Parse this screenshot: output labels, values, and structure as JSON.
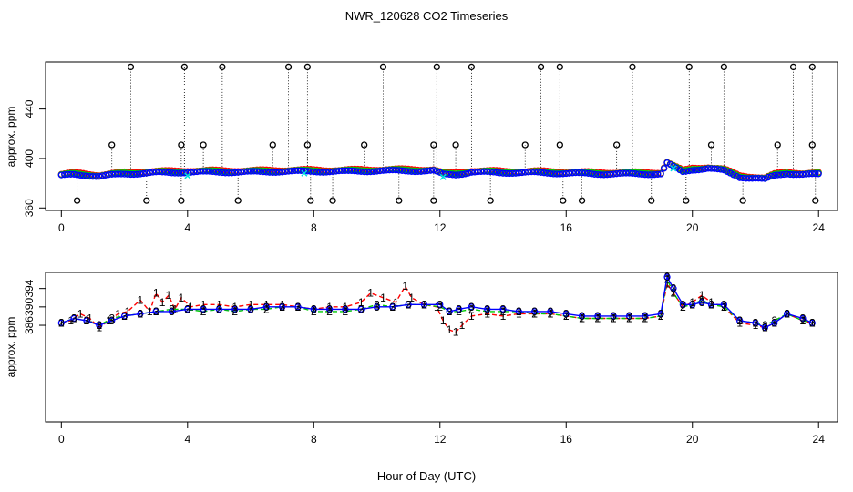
{
  "title": "NWR_120628  CO2 Timeseries",
  "xlabel": "Hour of Day (UTC)",
  "colors": {
    "s1": "#ff0000",
    "s2": "#00cc00",
    "s3": "#0000ff",
    "cyan": "#00e0e0",
    "outlier": "#000000"
  },
  "chart_data": [
    {
      "type": "scatter",
      "title": "NWR_120628  CO2 Timeseries",
      "ylabel": "approx. ppm",
      "xlabel": "Hour of Day (UTC)",
      "xlim": [
        -0.5,
        24.6
      ],
      "ylim": [
        358,
        478
      ],
      "xticks": [
        0,
        4,
        8,
        12,
        16,
        20,
        24
      ],
      "yticks": [
        360,
        400,
        440
      ],
      "baseline": [
        [
          0,
          386
        ],
        [
          0.4,
          387
        ],
        [
          0.8,
          386.5
        ],
        [
          1.2,
          385.5
        ],
        [
          1.6,
          386.5
        ],
        [
          2,
          387.5
        ],
        [
          2.5,
          388
        ],
        [
          3,
          388.5
        ],
        [
          3.5,
          388.5
        ],
        [
          4,
          389
        ],
        [
          5,
          389
        ],
        [
          6,
          389
        ],
        [
          7,
          389.5
        ],
        [
          8,
          389.5
        ],
        [
          9,
          389.5
        ],
        [
          10,
          390
        ],
        [
          11,
          390
        ],
        [
          11.8,
          390
        ],
        [
          12.1,
          387
        ],
        [
          12.5,
          387
        ],
        [
          13,
          389
        ],
        [
          14,
          388.5
        ],
        [
          15,
          388.5
        ],
        [
          16,
          388
        ],
        [
          17,
          387.5
        ],
        [
          18,
          387.5
        ],
        [
          19,
          387.5
        ],
        [
          19.2,
          396
        ],
        [
          19.4,
          393
        ],
        [
          19.7,
          389
        ],
        [
          20,
          391
        ],
        [
          20.5,
          392
        ],
        [
          21,
          390
        ],
        [
          21.5,
          385
        ],
        [
          22,
          384
        ],
        [
          22.3,
          383
        ],
        [
          22.6,
          386
        ],
        [
          23,
          388
        ],
        [
          23.5,
          387
        ],
        [
          23.9,
          387
        ]
      ],
      "outliers": {
        "high": [
          [
            2.2,
            474
          ],
          [
            3.9,
            474
          ],
          [
            5.1,
            474
          ],
          [
            7.2,
            474
          ],
          [
            7.8,
            474
          ],
          [
            10.2,
            474
          ],
          [
            11.9,
            474
          ],
          [
            13.0,
            474
          ],
          [
            15.2,
            474
          ],
          [
            15.8,
            474
          ],
          [
            18.1,
            474
          ],
          [
            19.9,
            474
          ],
          [
            21.0,
            474
          ],
          [
            23.2,
            474
          ],
          [
            23.8,
            474
          ]
        ],
        "mid": [
          [
            1.6,
            411
          ],
          [
            3.8,
            411
          ],
          [
            4.5,
            411
          ],
          [
            6.7,
            411
          ],
          [
            7.8,
            411
          ],
          [
            9.6,
            411
          ],
          [
            11.8,
            411
          ],
          [
            12.5,
            411
          ],
          [
            14.7,
            411
          ],
          [
            15.8,
            411
          ],
          [
            17.6,
            411
          ],
          [
            20.6,
            411
          ],
          [
            22.7,
            411
          ],
          [
            23.8,
            411
          ]
        ],
        "low": [
          [
            0.5,
            366
          ],
          [
            2.7,
            366
          ],
          [
            3.8,
            366
          ],
          [
            5.6,
            366
          ],
          [
            7.9,
            366
          ],
          [
            8.6,
            366
          ],
          [
            10.7,
            366
          ],
          [
            11.8,
            366
          ],
          [
            13.6,
            366
          ],
          [
            15.9,
            366
          ],
          [
            16.5,
            366
          ],
          [
            18.7,
            366
          ],
          [
            19.8,
            366
          ],
          [
            21.6,
            366
          ],
          [
            23.9,
            366
          ]
        ]
      },
      "cyan_points": [
        [
          4.0,
          386
        ],
        [
          7.7,
          388
        ],
        [
          12.1,
          385
        ],
        [
          19.4,
          392
        ]
      ]
    },
    {
      "type": "line",
      "ylabel": "approx. ppm",
      "xlabel": "Hour of Day (UTC)",
      "xlim": [
        -0.5,
        24.6
      ],
      "ylim": [
        365,
        397.5
      ],
      "xticks": [
        0,
        4,
        8,
        12,
        16,
        20,
        24
      ],
      "yticks": [
        386,
        390,
        394
      ],
      "series": [
        {
          "name": "1",
          "label": "1",
          "points": [
            [
              0,
              386.5
            ],
            [
              0.3,
              387
            ],
            [
              0.6,
              388.5
            ],
            [
              0.9,
              387.5
            ],
            [
              1.2,
              385.5
            ],
            [
              1.5,
              387
            ],
            [
              1.8,
              388.5
            ],
            [
              2.1,
              389
            ],
            [
              2.5,
              391.5
            ],
            [
              2.8,
              389
            ],
            [
              3,
              393
            ],
            [
              3.2,
              391
            ],
            [
              3.4,
              392.5
            ],
            [
              3.6,
              389.5
            ],
            [
              3.8,
              392
            ],
            [
              4.1,
              390
            ],
            [
              4.5,
              390.5
            ],
            [
              5,
              390.5
            ],
            [
              5.5,
              390
            ],
            [
              6,
              390.5
            ],
            [
              6.5,
              390.5
            ],
            [
              7,
              390.5
            ],
            [
              7.5,
              390
            ],
            [
              8,
              389.5
            ],
            [
              8.5,
              390
            ],
            [
              9,
              390
            ],
            [
              9.5,
              391
            ],
            [
              9.8,
              393
            ],
            [
              10.2,
              392
            ],
            [
              10.6,
              391
            ],
            [
              10.9,
              394.5
            ],
            [
              11.1,
              392
            ],
            [
              11.5,
              390.5
            ],
            [
              11.9,
              390
            ],
            [
              12.1,
              387
            ],
            [
              12.3,
              385
            ],
            [
              12.5,
              384.5
            ],
            [
              12.7,
              386
            ],
            [
              13,
              388
            ],
            [
              13.5,
              388.5
            ],
            [
              14,
              388
            ],
            [
              14.5,
              388.5
            ],
            [
              15,
              388.5
            ],
            [
              15.5,
              388.5
            ],
            [
              16,
              388
            ],
            [
              16.5,
              387.5
            ],
            [
              17,
              387.5
            ],
            [
              17.5,
              387.5
            ],
            [
              18,
              387.5
            ],
            [
              18.5,
              387.5
            ],
            [
              19,
              388
            ],
            [
              19.2,
              395
            ],
            [
              19.4,
              393
            ],
            [
              19.7,
              390
            ],
            [
              20,
              391
            ],
            [
              20.3,
              392.5
            ],
            [
              20.6,
              391
            ],
            [
              21,
              390
            ],
            [
              21.5,
              386.5
            ],
            [
              22,
              386
            ],
            [
              22.3,
              385.5
            ],
            [
              22.6,
              386.5
            ],
            [
              23,
              388.5
            ],
            [
              23.5,
              387
            ],
            [
              23.8,
              386.5
            ]
          ]
        },
        {
          "name": "2",
          "label": "2",
          "points": [
            [
              0,
              386.5
            ],
            [
              0.4,
              387.5
            ],
            [
              0.8,
              387
            ],
            [
              1.2,
              386
            ],
            [
              1.6,
              387.5
            ],
            [
              2,
              388
            ],
            [
              2.5,
              388.5
            ],
            [
              3,
              389
            ],
            [
              3.5,
              389.5
            ],
            [
              4,
              389.5
            ],
            [
              4.5,
              389
            ],
            [
              5,
              389.5
            ],
            [
              5.5,
              389
            ],
            [
              6,
              389.5
            ],
            [
              6.5,
              389.5
            ],
            [
              7,
              390
            ],
            [
              7.5,
              390
            ],
            [
              8,
              389
            ],
            [
              8.5,
              389
            ],
            [
              9,
              389
            ],
            [
              9.5,
              389.5
            ],
            [
              10,
              390.5
            ],
            [
              10.5,
              390
            ],
            [
              11,
              390.5
            ],
            [
              11.5,
              390.5
            ],
            [
              12,
              390
            ],
            [
              12.3,
              389
            ],
            [
              12.6,
              389
            ],
            [
              13,
              389.5
            ],
            [
              13.5,
              389
            ],
            [
              14,
              389
            ],
            [
              14.5,
              389
            ],
            [
              15,
              388.5
            ],
            [
              15.5,
              388.5
            ],
            [
              16,
              388
            ],
            [
              16.5,
              387.5
            ],
            [
              17,
              387.5
            ],
            [
              17.5,
              387.5
            ],
            [
              18,
              387.5
            ],
            [
              18.5,
              387.5
            ],
            [
              19,
              388
            ],
            [
              19.2,
              396
            ],
            [
              19.4,
              393
            ],
            [
              19.7,
              390
            ],
            [
              20,
              390.5
            ],
            [
              20.3,
              391.5
            ],
            [
              20.6,
              390.5
            ],
            [
              21,
              390
            ],
            [
              21.5,
              387
            ],
            [
              22,
              386.5
            ],
            [
              22.3,
              386
            ],
            [
              22.6,
              387
            ],
            [
              23,
              388.5
            ],
            [
              23.5,
              387
            ],
            [
              23.8,
              386.5
            ]
          ]
        },
        {
          "name": "3",
          "label": "3",
          "points": [
            [
              0,
              386.5
            ],
            [
              0.4,
              387.5
            ],
            [
              0.8,
              387
            ],
            [
              1.2,
              386
            ],
            [
              1.6,
              387
            ],
            [
              2,
              388
            ],
            [
              2.5,
              388.5
            ],
            [
              3,
              389
            ],
            [
              3.5,
              389
            ],
            [
              4,
              389.5
            ],
            [
              4.5,
              389.5
            ],
            [
              5,
              389.5
            ],
            [
              5.5,
              389.5
            ],
            [
              6,
              389.5
            ],
            [
              6.5,
              390
            ],
            [
              7,
              390
            ],
            [
              7.5,
              390
            ],
            [
              8,
              389.5
            ],
            [
              8.5,
              389.5
            ],
            [
              9,
              389.5
            ],
            [
              9.5,
              389.5
            ],
            [
              10,
              390
            ],
            [
              10.5,
              390
            ],
            [
              11,
              390.5
            ],
            [
              11.5,
              390.5
            ],
            [
              12,
              390.5
            ],
            [
              12.3,
              389
            ],
            [
              12.6,
              389.5
            ],
            [
              13,
              390
            ],
            [
              13.5,
              389.5
            ],
            [
              14,
              389.5
            ],
            [
              14.5,
              389
            ],
            [
              15,
              389
            ],
            [
              15.5,
              389
            ],
            [
              16,
              388.5
            ],
            [
              16.5,
              388
            ],
            [
              17,
              388
            ],
            [
              17.5,
              388
            ],
            [
              18,
              388
            ],
            [
              18.5,
              388
            ],
            [
              19,
              388.5
            ],
            [
              19.2,
              396.5
            ],
            [
              19.4,
              394
            ],
            [
              19.7,
              390.5
            ],
            [
              20,
              390.5
            ],
            [
              20.3,
              391
            ],
            [
              20.6,
              390.5
            ],
            [
              21,
              390.5
            ],
            [
              21.5,
              387
            ],
            [
              22,
              386.5
            ],
            [
              22.3,
              385.5
            ],
            [
              22.6,
              386.5
            ],
            [
              23,
              388.5
            ],
            [
              23.5,
              387.5
            ],
            [
              23.8,
              386.5
            ]
          ]
        }
      ]
    }
  ]
}
